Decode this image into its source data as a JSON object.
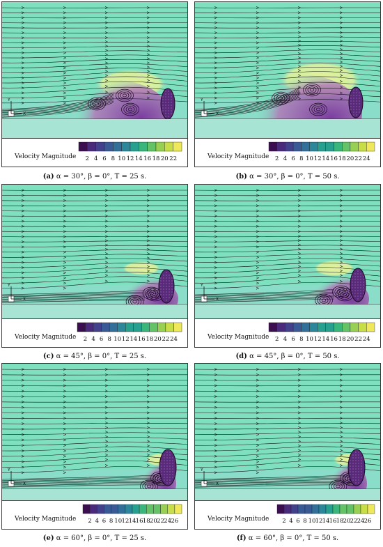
{
  "colors": {
    "background": "#7fe0c0",
    "wake_purple": "#7b3fa0",
    "highlight_yellow": "#e6f29a",
    "streamline": "#111111",
    "colorbar": [
      "#3b0f4f",
      "#4a2a7a",
      "#43418c",
      "#3a5a96",
      "#337099",
      "#2c879a",
      "#27a08f",
      "#3ab57c",
      "#64c366",
      "#98d053",
      "#c8de48",
      "#eee85a"
    ]
  },
  "legend_label": "Velocity Magnitude",
  "panels": [
    {
      "id": "a",
      "caption_letter": "(a)",
      "caption_text": " α = 30°, β = 0°, T = 25 s.",
      "colorbar_ticks": [
        "2",
        "4",
        "6",
        "8",
        "10",
        "12",
        "14",
        "16",
        "18",
        "20",
        "22"
      ]
    },
    {
      "id": "b",
      "caption_letter": "(b)",
      "caption_text": " α = 30°, β = 0°, T = 50 s.",
      "colorbar_ticks": [
        "2",
        "4",
        "6",
        "8",
        "10",
        "12",
        "14",
        "16",
        "18",
        "20",
        "22",
        "24"
      ]
    },
    {
      "id": "c",
      "caption_letter": "(c)",
      "caption_text": " α = 45°, β = 0°, T = 25 s.",
      "colorbar_ticks": [
        "2",
        "4",
        "6",
        "8",
        "10",
        "12",
        "14",
        "16",
        "18",
        "20",
        "22",
        "24"
      ]
    },
    {
      "id": "d",
      "caption_letter": "(d)",
      "caption_text": " α = 45°, β = 0°, T = 50 s.",
      "colorbar_ticks": [
        "2",
        "4",
        "6",
        "8",
        "10",
        "12",
        "14",
        "16",
        "18",
        "20",
        "22",
        "24"
      ]
    },
    {
      "id": "e",
      "caption_letter": "(e)",
      "caption_text": " α = 60°, β = 0°, T = 25 s.",
      "colorbar_ticks": [
        "2",
        "4",
        "6",
        "8",
        "10",
        "12",
        "14",
        "16",
        "18",
        "20",
        "22",
        "24",
        "26"
      ]
    },
    {
      "id": "f",
      "caption_letter": "(f)",
      "caption_text": " α = 60°, β = 0°, T = 50 s.",
      "colorbar_ticks": [
        "2",
        "4",
        "6",
        "8",
        "10",
        "12",
        "14",
        "16",
        "18",
        "20",
        "22",
        "24",
        "26"
      ]
    }
  ],
  "axis_labels": {
    "y": "Y",
    "x": "X"
  }
}
